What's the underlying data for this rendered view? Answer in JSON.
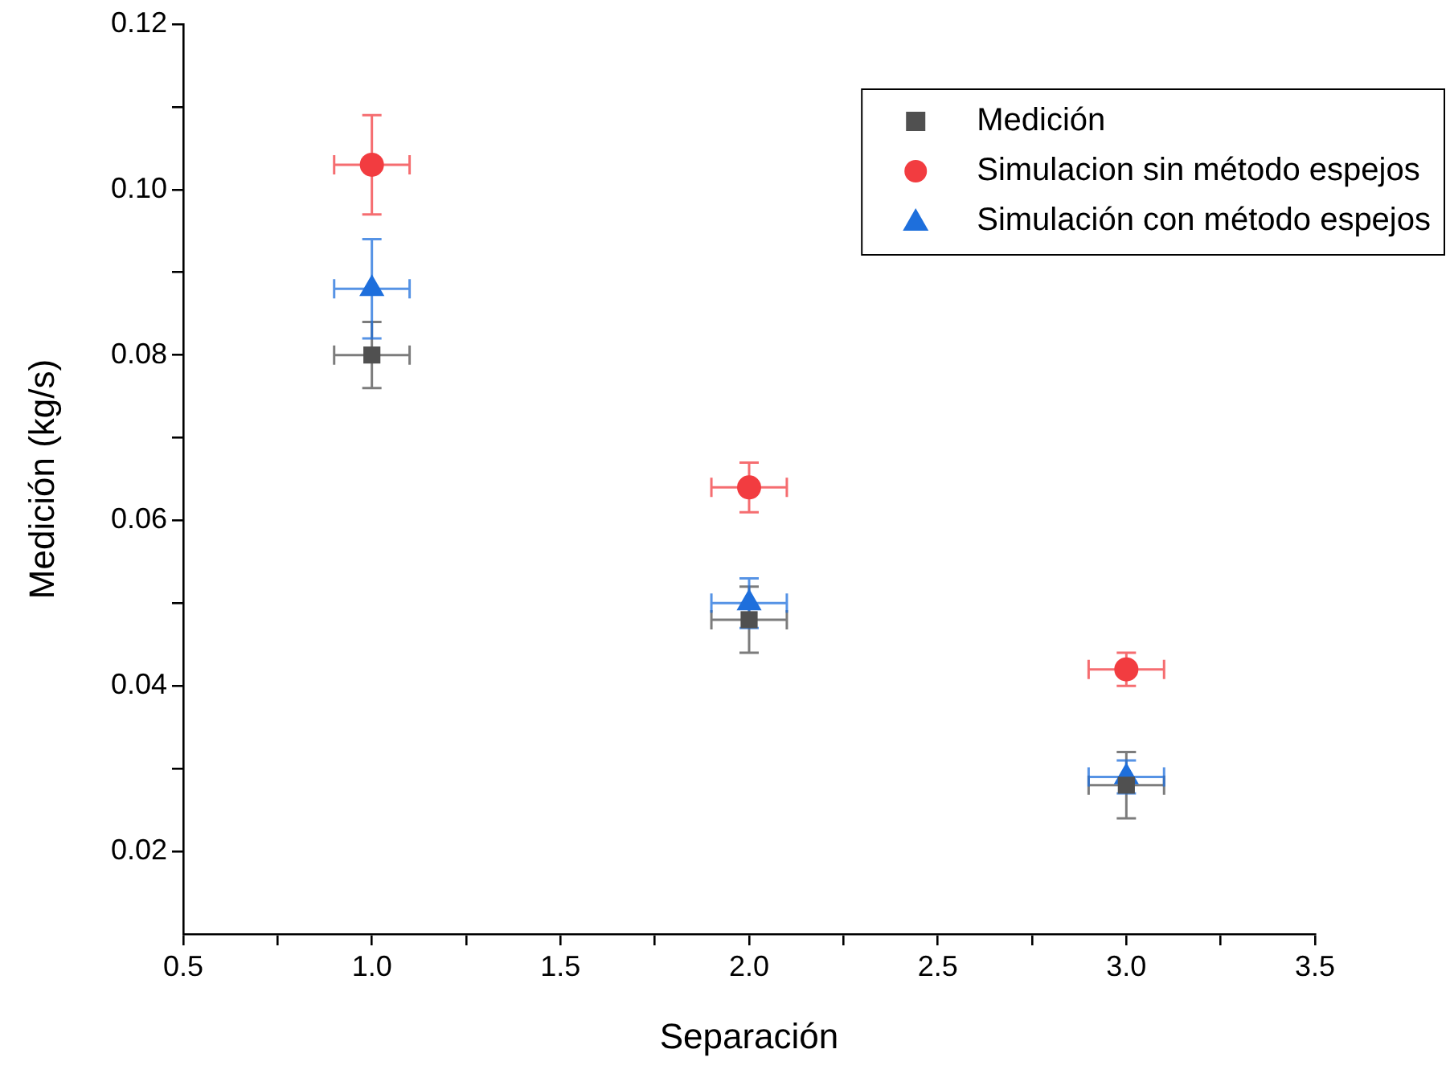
{
  "chart_data": {
    "type": "scatter",
    "xlabel": "Separación",
    "ylabel": "Medición (kg/s)",
    "x": [
      1,
      2,
      3
    ],
    "series": [
      {
        "name": "Medición",
        "color": "#505050",
        "marker": "square",
        "values": [
          0.08,
          0.048,
          0.028
        ],
        "errors": [
          0.004,
          0.004,
          0.004
        ],
        "xerrors": [
          0.1,
          0.1,
          0.1
        ]
      },
      {
        "name": "Simulacion sin método espejos",
        "color": "#f23c40",
        "marker": "circle",
        "values": [
          0.103,
          0.064,
          0.042
        ],
        "errors": [
          0.006,
          0.003,
          0.002
        ],
        "xerrors": [
          0.1,
          0.1,
          0.1
        ]
      },
      {
        "name": "Simulación con método espejos",
        "color": "#1e6fdc",
        "marker": "triangle",
        "values": [
          0.088,
          0.05,
          0.029
        ],
        "errors": [
          0.006,
          0.003,
          0.002
        ],
        "xerrors": [
          0.1,
          0.1,
          0.1
        ]
      }
    ],
    "xlim": [
      0.5,
      3.5
    ],
    "xticks": [
      {
        "value": 0.5,
        "label": "0.5"
      },
      {
        "value": 0.75,
        "label": null
      },
      {
        "value": 1,
        "label": "1.0"
      },
      {
        "value": 1.25,
        "label": null
      },
      {
        "value": 1.5,
        "label": "1.5"
      },
      {
        "value": 1.75,
        "label": null
      },
      {
        "value": 2,
        "label": "2.0"
      },
      {
        "value": 2.25,
        "label": null
      },
      {
        "value": 2.5,
        "label": "2.5"
      },
      {
        "value": 2.75,
        "label": null
      },
      {
        "value": 3,
        "label": "3.0"
      },
      {
        "value": 3.25,
        "label": null
      },
      {
        "value": 3.5,
        "label": "3.5"
      }
    ],
    "ylim": [
      0.01,
      0.12
    ],
    "yticks": [
      {
        "value": 0.02,
        "label": "0.02"
      },
      {
        "value": 0.03,
        "label": null
      },
      {
        "value": 0.04,
        "label": "0.04"
      },
      {
        "value": 0.05,
        "label": null
      },
      {
        "value": 0.06,
        "label": "0.06"
      },
      {
        "value": 0.07,
        "label": null
      },
      {
        "value": 0.08,
        "label": "0.08"
      },
      {
        "value": 0.09,
        "label": null
      },
      {
        "value": 0.1,
        "label": "0.10"
      },
      {
        "value": 0.11,
        "label": null
      },
      {
        "value": 0.12,
        "label": "0.12"
      }
    ],
    "grid": false,
    "legend": "top right"
  }
}
